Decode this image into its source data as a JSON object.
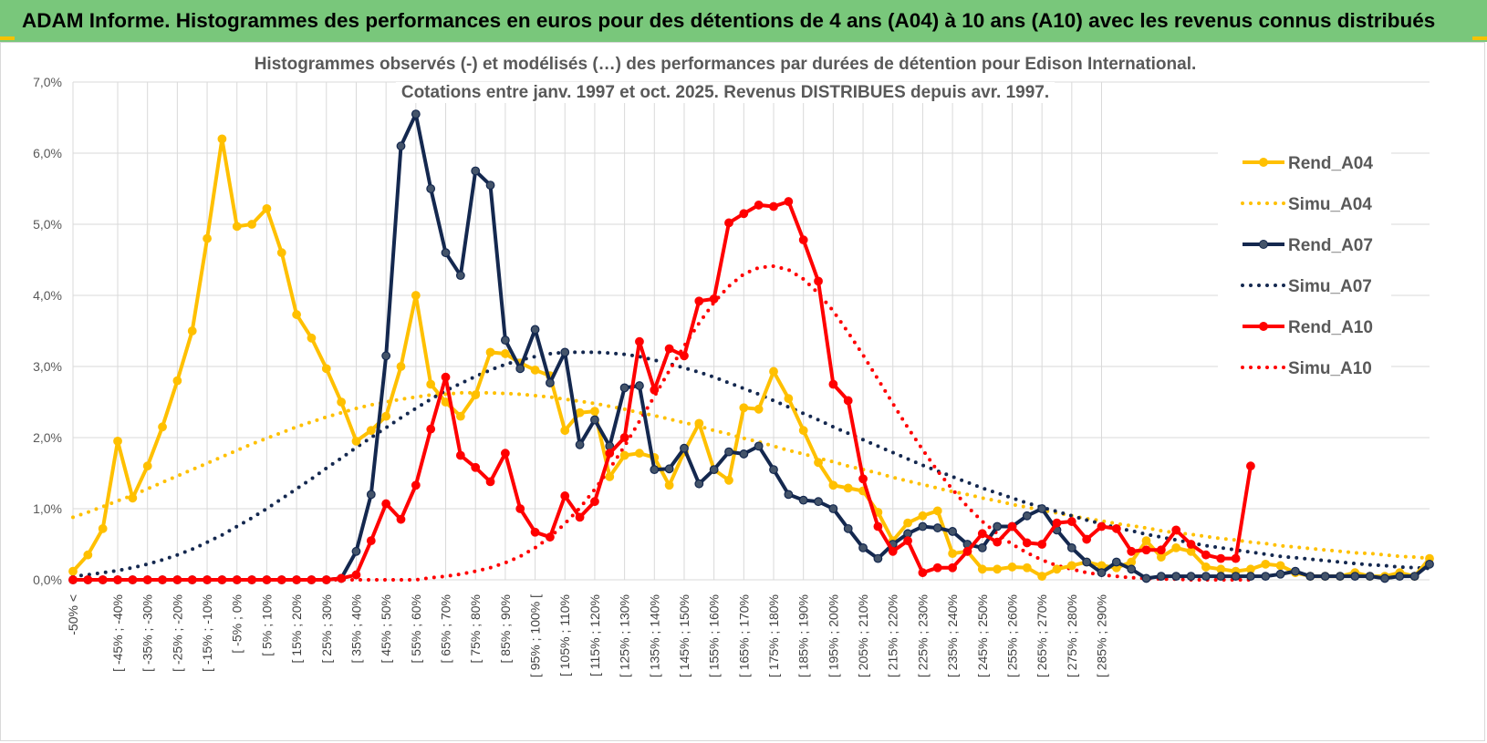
{
  "header": {
    "title": "ADAM Informe. Histogrammes des performances en euros pour des détentions de 4 ans (A04) à 10 ans (A10) avec les revenus connus distribués"
  },
  "chart_data": {
    "type": "line",
    "title_lines": [
      "Histogrammes observés (-) et modélisés (…) des performances par durées de détention pour Edison International.",
      "Cotations entre janv. 1997 et oct. 2025.  Revenus DISTRIBUES depuis avr. 1997."
    ],
    "ylim": [
      0,
      7
    ],
    "yticks": [
      "0,0%",
      "1,0%",
      "2,0%",
      "3,0%",
      "4,0%",
      "5,0%",
      "6,0%",
      "7,0%"
    ],
    "grid": true,
    "legend_position": "right",
    "x_labels": [
      "-50% <",
      "[ -45% ; -40%",
      "[ -35% ; -30%",
      "[ -25% ; -20%",
      "[ -15% ; -10%",
      "[ -5% ; 0%",
      "[ 5% ; 10%",
      "[ 15% ; 20%",
      "[ 25% ; 30%",
      "[ 35% ; 40%",
      "[ 45% ; 50%",
      "[ 55% ; 60%",
      "[ 65% ; 70%",
      "[ 75% ; 80%",
      "[ 85% ; 90%",
      "[ 95% ; 100% [",
      "[ 105% ; 110%",
      "[ 115% ; 120%",
      "[ 125% ; 130%",
      "[ 135% ; 140%",
      "[ 145% ; 150%",
      "[ 155% ; 160%",
      "[ 165% ; 170%",
      "[ 175% ; 180%",
      "[ 185% ; 190%",
      "[ 195% ; 200%",
      "[ 205% ; 210%",
      "[ 215% ; 220%",
      "[ 225% ; 230%",
      "[ 235% ; 240%",
      "[ 245% ; 250%",
      "[ 255% ; 260%",
      "[ 265% ; 270%",
      "[ 275% ; 280%",
      "[ 285% ; 290%"
    ],
    "series": [
      {
        "name": "Rend_A04",
        "color": "#ffc000",
        "style": "solid",
        "values": [
          0.12,
          0.35,
          0.72,
          1.95,
          1.15,
          1.6,
          2.15,
          2.8,
          3.5,
          4.8,
          6.2,
          4.97,
          5.0,
          5.22,
          4.6,
          3.73,
          3.4,
          2.97,
          2.5,
          1.95,
          2.1,
          2.3,
          3.0,
          4.0,
          2.75,
          2.5,
          2.3,
          2.6,
          3.2,
          3.18,
          3.05,
          2.95,
          2.87,
          2.1,
          2.35,
          2.37,
          1.45,
          1.75,
          1.78,
          1.72,
          1.33,
          1.8,
          2.2,
          1.55,
          1.4,
          2.42,
          2.4,
          2.93,
          2.55,
          2.1,
          1.65,
          1.33,
          1.29,
          1.25,
          0.95,
          0.55,
          0.8,
          0.9,
          0.97,
          0.37,
          0.4,
          0.15,
          0.15,
          0.18,
          0.17,
          0.05,
          0.15,
          0.2,
          0.25,
          0.2,
          0.17,
          0.25,
          0.55,
          0.32,
          0.45,
          0.4,
          0.18,
          0.15,
          0.12,
          0.15,
          0.22,
          0.2,
          0.1,
          0.05,
          0.05,
          0.05,
          0.1,
          0.05,
          0.05,
          0.1,
          0.05,
          0.3
        ]
      },
      {
        "name": "Simu_A04",
        "color": "#ffc000",
        "style": "dotted",
        "values": [
          0.88,
          0.95,
          1.03,
          1.11,
          1.19,
          1.28,
          1.37,
          1.46,
          1.55,
          1.64,
          1.73,
          1.82,
          1.91,
          1.99,
          2.07,
          2.15,
          2.22,
          2.29,
          2.35,
          2.41,
          2.46,
          2.5,
          2.54,
          2.57,
          2.6,
          2.61,
          2.63,
          2.63,
          2.63,
          2.62,
          2.61,
          2.59,
          2.57,
          2.54,
          2.51,
          2.48,
          2.44,
          2.4,
          2.35,
          2.31,
          2.26,
          2.21,
          2.16,
          2.1,
          2.05,
          1.99,
          1.94,
          1.88,
          1.82,
          1.77,
          1.71,
          1.66,
          1.6,
          1.55,
          1.5,
          1.44,
          1.39,
          1.34,
          1.29,
          1.24,
          1.2,
          1.15,
          1.11,
          1.06,
          1.02,
          0.98,
          0.94,
          0.9,
          0.86,
          0.83,
          0.79,
          0.76,
          0.73,
          0.69,
          0.66,
          0.64,
          0.61,
          0.58,
          0.56,
          0.53,
          0.51,
          0.48,
          0.46,
          0.44,
          0.42,
          0.4,
          0.38,
          0.37,
          0.35,
          0.33,
          0.32,
          0.3
        ]
      },
      {
        "name": "Rend_A07",
        "color": "#14284f",
        "style": "solid",
        "values": [
          0,
          0,
          0,
          0,
          0,
          0,
          0,
          0,
          0,
          0,
          0,
          0,
          0,
          0,
          0,
          0,
          0,
          0,
          0.02,
          0.4,
          1.2,
          3.15,
          6.1,
          6.55,
          5.5,
          4.6,
          4.28,
          5.75,
          5.55,
          3.37,
          2.97,
          3.52,
          2.77,
          3.2,
          1.9,
          2.25,
          1.88,
          2.7,
          2.73,
          1.55,
          1.56,
          1.85,
          1.35,
          1.55,
          1.8,
          1.77,
          1.88,
          1.55,
          1.2,
          1.12,
          1.1,
          1.0,
          0.72,
          0.45,
          0.3,
          0.5,
          0.65,
          0.75,
          0.73,
          0.68,
          0.5,
          0.45,
          0.75,
          0.75,
          0.9,
          1.0,
          0.7,
          0.45,
          0.25,
          0.1,
          0.25,
          0.15,
          0.02,
          0.05,
          0.05,
          0.05,
          0.05,
          0.05,
          0.05,
          0.05,
          0.05,
          0.08,
          0.12,
          0.05,
          0.05,
          0.05,
          0.05,
          0.05,
          0.02,
          0.05,
          0.05,
          0.22
        ]
      },
      {
        "name": "Simu_A07",
        "color": "#14284f",
        "style": "dotted",
        "values": [
          0.05,
          0.07,
          0.1,
          0.13,
          0.17,
          0.22,
          0.28,
          0.35,
          0.43,
          0.53,
          0.63,
          0.75,
          0.87,
          1.0,
          1.14,
          1.28,
          1.42,
          1.57,
          1.71,
          1.86,
          2.0,
          2.14,
          2.28,
          2.41,
          2.54,
          2.66,
          2.76,
          2.86,
          2.95,
          3.03,
          3.09,
          3.14,
          3.18,
          3.2,
          3.2,
          3.2,
          3.19,
          3.17,
          3.14,
          3.09,
          3.04,
          2.98,
          2.92,
          2.85,
          2.77,
          2.69,
          2.61,
          2.52,
          2.43,
          2.34,
          2.25,
          2.15,
          2.06,
          1.97,
          1.88,
          1.79,
          1.7,
          1.61,
          1.53,
          1.45,
          1.37,
          1.29,
          1.22,
          1.15,
          1.08,
          1.02,
          0.96,
          0.9,
          0.84,
          0.79,
          0.73,
          0.69,
          0.64,
          0.6,
          0.56,
          0.52,
          0.48,
          0.45,
          0.42,
          0.39,
          0.36,
          0.33,
          0.31,
          0.29,
          0.27,
          0.25,
          0.23,
          0.21,
          0.2,
          0.18,
          0.17,
          0.16
        ]
      },
      {
        "name": "Rend_A10",
        "color": "#ff0000",
        "style": "solid",
        "values": [
          0,
          0,
          0,
          0,
          0,
          0,
          0,
          0,
          0,
          0,
          0,
          0,
          0,
          0,
          0,
          0,
          0,
          0,
          0.02,
          0.07,
          0.55,
          1.07,
          0.85,
          1.33,
          2.12,
          2.85,
          1.75,
          1.58,
          1.38,
          1.78,
          1.0,
          0.67,
          0.6,
          1.18,
          0.88,
          1.1,
          1.78,
          2.0,
          3.35,
          2.67,
          3.25,
          3.15,
          3.92,
          3.95,
          5.02,
          5.15,
          5.27,
          5.25,
          5.32,
          4.78,
          4.2,
          2.75,
          2.52,
          1.42,
          0.75,
          0.4,
          0.55,
          0.1,
          0.17,
          0.17,
          0.4,
          0.65,
          0.53,
          0.75,
          0.52,
          0.5,
          0.8,
          0.82,
          0.57,
          0.75,
          0.72,
          0.4,
          0.42,
          0.42,
          0.7,
          0.5,
          0.35,
          0.3,
          0.3,
          1.6
        ]
      },
      {
        "name": "Simu_A10",
        "color": "#ff0000",
        "style": "dotted",
        "values": [
          0,
          0,
          0,
          0,
          0,
          0,
          0,
          0,
          0,
          0,
          0,
          0,
          0,
          0,
          0,
          0,
          0,
          0,
          0,
          0,
          0,
          0,
          0,
          0,
          0.03,
          0.05,
          0.08,
          0.12,
          0.17,
          0.24,
          0.33,
          0.45,
          0.6,
          0.79,
          1.01,
          1.27,
          1.56,
          1.88,
          2.23,
          2.58,
          2.94,
          3.29,
          3.61,
          3.9,
          4.13,
          4.3,
          4.39,
          4.41,
          4.36,
          4.23,
          4.03,
          3.78,
          3.48,
          3.16,
          2.82,
          2.48,
          2.14,
          1.83,
          1.53,
          1.27,
          1.03,
          0.82,
          0.65,
          0.5,
          0.38,
          0.28,
          0.2,
          0.15,
          0.1,
          0.07,
          0.05,
          0.03,
          0.02,
          0.01,
          0.01,
          0.0,
          0.0,
          0.0,
          0.0,
          0.0
        ]
      }
    ]
  }
}
